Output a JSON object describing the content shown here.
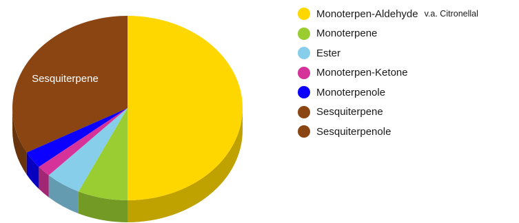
{
  "chart_data": {
    "type": "pie",
    "categories": [
      "Monoterpen-Aldehyde",
      "Monoterpene",
      "Ester",
      "Monoterpen-Ketone",
      "Monoterpenole",
      "Sesquiterpene",
      "Sesquiterpenole"
    ],
    "values": [
      50,
      7,
      5,
      2,
      3,
      33,
      0
    ],
    "colors": [
      "#ffd700",
      "#9acd32",
      "#87ceeb",
      "#d6339a",
      "#0b00ff",
      "#8b4513",
      "#8b4513"
    ],
    "slice_labels": [
      "",
      "",
      "",
      "",
      "",
      "Sesquiterpene",
      ""
    ],
    "style": "3d-tilted",
    "legend_position": "top-right"
  },
  "legend": {
    "items": [
      {
        "label": "Monoterpen-Aldehyde",
        "note": "v.a. Citronellal",
        "color": "#ffd700"
      },
      {
        "label": "Monoterpene",
        "note": "",
        "color": "#9acd32"
      },
      {
        "label": "Ester",
        "note": "",
        "color": "#87ceeb"
      },
      {
        "label": "Monoterpen-Ketone",
        "note": "",
        "color": "#d6339a"
      },
      {
        "label": "Monoterpenole",
        "note": "",
        "color": "#0b00ff"
      },
      {
        "label": "Sesquiterpene",
        "note": "",
        "color": "#8b4513"
      },
      {
        "label": "Sesquiterpenole",
        "note": "",
        "color": "#8b4513"
      }
    ]
  }
}
